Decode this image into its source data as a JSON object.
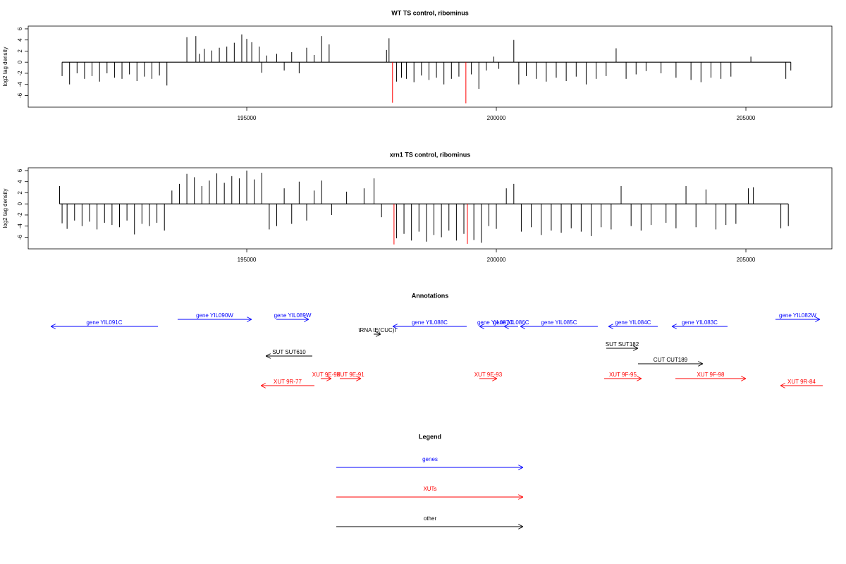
{
  "chart_data": [
    {
      "type": "bar",
      "title": "WT TS control, ribominus",
      "ylabel": "log2 tag density",
      "xlim": [
        190621,
        206723
      ],
      "ylim": [
        -8.1,
        6.5
      ],
      "xticks": [
        195000,
        200000,
        205000
      ],
      "yticks": [
        -6,
        -4,
        -2,
        0,
        2,
        4,
        6
      ],
      "series": [
        {
          "color": "#000000",
          "x": [
            191300,
            191450,
            191600,
            191750,
            191900,
            192050,
            192200,
            192350,
            192500,
            192650,
            192800,
            192950,
            193100,
            193250,
            193400,
            193800,
            193980,
            194050,
            194150,
            194300,
            194450,
            194600,
            194750,
            194900,
            195000,
            195100,
            195250,
            195300,
            195400,
            195600,
            195750,
            195900,
            196050,
            196200,
            196350,
            196500,
            196650,
            197800,
            197850,
            198000,
            198100,
            198200,
            198350,
            198500,
            198650,
            198800,
            198950,
            199100,
            199250,
            199500,
            199650,
            199800,
            199950,
            200050,
            200350,
            200450,
            200600,
            200800,
            201000,
            201200,
            201400,
            201600,
            201800,
            202000,
            202200,
            202400,
            202600,
            202800,
            203000,
            203300,
            203600,
            203900,
            204100,
            204300,
            204500,
            204700,
            205100,
            205800,
            205900
          ],
          "values": [
            -2.5,
            -4,
            -2,
            -3,
            -2.5,
            -3.5,
            -2,
            -2.8,
            -3,
            -2.2,
            -3.4,
            -2.6,
            -3,
            -2.4,
            -4.2,
            4.5,
            4.7,
            1.5,
            2.4,
            2.1,
            2.6,
            2.8,
            3.5,
            5,
            4.2,
            3.6,
            2.8,
            -1.9,
            1.2,
            1.5,
            -1.5,
            1.8,
            -2,
            2.6,
            1.3,
            4.7,
            3.2,
            2.2,
            4.3,
            -3.5,
            -2.8,
            -3,
            -3.6,
            -2.4,
            -3.2,
            -2.8,
            -4,
            -3,
            -2.6,
            -2.2,
            -4.8,
            -1.5,
            1,
            -1.2,
            4,
            -4,
            -2.5,
            -3,
            -3.5,
            -2.8,
            -3.4,
            -2.6,
            -4,
            -3,
            -2.5,
            2.5,
            -3,
            -2.2,
            -1.6,
            -2,
            -2.8,
            -3.2,
            -3.6,
            -2.8,
            -3,
            -2.6,
            1,
            -3,
            -1.5
          ]
        },
        {
          "color": "#ff0000",
          "x": [
            197920,
            199390
          ],
          "values": [
            -7.3,
            -7.4
          ]
        }
      ]
    },
    {
      "type": "bar",
      "title": "xrn1 TS control, ribominus",
      "ylabel": "log2 tag density",
      "xlim": [
        190621,
        206723
      ],
      "ylim": [
        -8.1,
        6.5
      ],
      "xticks": [
        195000,
        200000,
        205000
      ],
      "yticks": [
        -6,
        -4,
        -2,
        0,
        2,
        4,
        6
      ],
      "series": [
        {
          "color": "#000000",
          "x": [
            191250,
            191300,
            191400,
            191550,
            191700,
            191850,
            192000,
            192150,
            192300,
            192450,
            192600,
            192750,
            192900,
            193050,
            193200,
            193350,
            193500,
            193650,
            193800,
            193950,
            194100,
            194250,
            194400,
            194550,
            194700,
            194850,
            195000,
            195150,
            195300,
            195450,
            195600,
            195750,
            195900,
            196050,
            196200,
            196350,
            196500,
            196700,
            197000,
            197350,
            197550,
            197700,
            198000,
            198150,
            198300,
            198450,
            198600,
            198750,
            198900,
            199050,
            199200,
            199350,
            199550,
            199700,
            199850,
            200000,
            200200,
            200350,
            200500,
            200700,
            200900,
            201100,
            201300,
            201500,
            201700,
            201900,
            202100,
            202300,
            202500,
            202700,
            202900,
            203100,
            203400,
            203600,
            203800,
            204000,
            204200,
            204400,
            204600,
            204800,
            205050,
            205150,
            205700,
            205850
          ],
          "values": [
            3.2,
            -3.5,
            -4.5,
            -3,
            -4,
            -3.2,
            -4.6,
            -3.4,
            -3.8,
            -4.2,
            -3,
            -5.5,
            -3.6,
            -4,
            -3.4,
            -4.8,
            2.4,
            3.6,
            5.4,
            4.8,
            3.2,
            4.2,
            5.5,
            3.8,
            5,
            4.6,
            6,
            4.4,
            5.6,
            -4.6,
            -4,
            2.8,
            -3.6,
            4,
            -3,
            2.4,
            4.2,
            -2,
            2.2,
            2.8,
            4.6,
            -2.4,
            -6.2,
            -5.4,
            -6.6,
            -5,
            -6.8,
            -5.6,
            -6,
            -4.8,
            -6.6,
            -5.4,
            -6.5,
            -7,
            -4,
            -4.5,
            2.8,
            3.6,
            -5,
            -4.2,
            -5.6,
            -4.8,
            -5.2,
            -4.4,
            -5,
            -5.8,
            -4.2,
            -4.6,
            3.2,
            -4,
            -4.8,
            -3.8,
            -3.4,
            -4.4,
            3.2,
            -4.2,
            2.6,
            -4.6,
            -3.8,
            -3.6,
            2.8,
            3,
            -4.4,
            -4
          ]
        },
        {
          "color": "#ff0000",
          "x": [
            197950,
            199420
          ],
          "values": [
            -7.3,
            -7.2
          ]
        }
      ]
    }
  ],
  "annotations": {
    "title": "Annotations",
    "xlim": [
      190621,
      206723
    ],
    "features": [
      {
        "label": "gene YIL091C",
        "start": 193220,
        "end": 191073,
        "color": "#0000ff"
      },
      {
        "label": "gene YIL090W",
        "start": 193615,
        "end": 195098,
        "color": "#0000ff"
      },
      {
        "label": "gene YIL089W",
        "start": 195593,
        "end": 196242,
        "color": "#0000ff"
      },
      {
        "label": "gene YIL088C",
        "start": 199406,
        "end": 197923,
        "color": "#0000ff"
      },
      {
        "label": "gene YIL087C",
        "start": 200296,
        "end": 199660,
        "color": "#0000ff"
      },
      {
        "label": "gene YIL086C",
        "start": 200437,
        "end": 200155,
        "color": "#0000ff"
      },
      {
        "label": "gene YIL085C",
        "start": 202033,
        "end": 200480,
        "color": "#0000ff"
      },
      {
        "label": "gene YIL084C",
        "start": 203234,
        "end": 202245,
        "color": "#0000ff"
      },
      {
        "label": "gene YIL083C",
        "start": 204632,
        "end": 203516,
        "color": "#0000ff"
      },
      {
        "label": "gene YIL082W",
        "start": 205592,
        "end": 206482,
        "color": "#0000ff"
      },
      {
        "label": "tRNA tE(CUC)I",
        "start": 197542,
        "end": 197683,
        "color": "#000000"
      },
      {
        "label": "SUT SUT610",
        "start": 196313,
        "end": 195381,
        "color": "#000000"
      },
      {
        "label": "SUT SUT182",
        "start": 202203,
        "end": 202838,
        "color": "#000000"
      },
      {
        "label": "CUT CUT189",
        "start": 202838,
        "end": 204138,
        "color": "#000000"
      },
      {
        "label": "XUT 9R-77",
        "start": 196355,
        "end": 195282,
        "color": "#ff0000"
      },
      {
        "label": "XUT 9E-90",
        "start": 196482,
        "end": 196694,
        "color": "#ff0000"
      },
      {
        "label": "XUT 9E-91",
        "start": 196864,
        "end": 197288,
        "color": "#ff0000"
      },
      {
        "label": "XUT 9E-93",
        "start": 199660,
        "end": 200013,
        "color": "#ff0000"
      },
      {
        "label": "XUT 9F-95",
        "start": 202160,
        "end": 202909,
        "color": "#ff0000"
      },
      {
        "label": "XUT 9F-98",
        "start": 203587,
        "end": 204999,
        "color": "#ff0000"
      },
      {
        "label": "XUT 9R-84",
        "start": 206539,
        "end": 205691,
        "color": "#ff0000"
      }
    ]
  },
  "legend": {
    "title": "Legend",
    "items": [
      {
        "label": "genes",
        "color": "#0000ff"
      },
      {
        "label": "XUTs",
        "color": "#ff0000"
      },
      {
        "label": "other",
        "color": "#000000"
      }
    ]
  }
}
